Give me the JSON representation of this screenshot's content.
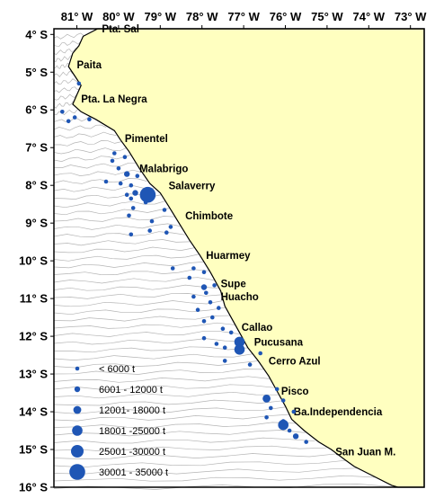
{
  "colors": {
    "land": "#FFFFC0",
    "sea": "#FFFFFF",
    "frame": "#000000",
    "dot": "#1f56b5",
    "contour": "#b4b4b4"
  },
  "axes": {
    "lon": [
      {
        "value": -81,
        "label": "81° W"
      },
      {
        "value": -80,
        "label": "80° W"
      },
      {
        "value": -79,
        "label": "79° W"
      },
      {
        "value": -78,
        "label": "78° W"
      },
      {
        "value": -77,
        "label": "77° W"
      },
      {
        "value": -76,
        "label": "76° W"
      },
      {
        "value": -75,
        "label": "75° W"
      },
      {
        "value": -74,
        "label": "74° W"
      },
      {
        "value": -73,
        "label": "73° W"
      }
    ],
    "lat": [
      {
        "value": -4,
        "label": "4° S"
      },
      {
        "value": -5,
        "label": "5° S"
      },
      {
        "value": -6,
        "label": "6° S"
      },
      {
        "value": -7,
        "label": "7° S"
      },
      {
        "value": -8,
        "label": "8° S"
      },
      {
        "value": -9,
        "label": "9° S"
      },
      {
        "value": -10,
        "label": "10° S"
      },
      {
        "value": -11,
        "label": "11° S"
      },
      {
        "value": -12,
        "label": "12° S"
      },
      {
        "value": -13,
        "label": "13° S"
      },
      {
        "value": -14,
        "label": "14° S"
      },
      {
        "value": -15,
        "label": "15° S"
      },
      {
        "value": -16,
        "label": "16° S"
      }
    ]
  },
  "places": [
    {
      "name": "Pta. Sal",
      "lon": -80.4,
      "lat": -3.95
    },
    {
      "name": "Paita",
      "lon": -81.0,
      "lat": -4.9
    },
    {
      "name": "Pta. La Negra",
      "lon": -80.9,
      "lat": -5.8
    },
    {
      "name": "Pimentel",
      "lon": -79.85,
      "lat": -6.85
    },
    {
      "name": "Malabrigo",
      "lon": -79.5,
      "lat": -7.65
    },
    {
      "name": "Salaverry",
      "lon": -78.8,
      "lat": -8.1
    },
    {
      "name": "Chimbote",
      "lon": -78.4,
      "lat": -8.9
    },
    {
      "name": "Huarmey",
      "lon": -77.9,
      "lat": -9.95
    },
    {
      "name": "Supe",
      "lon": -77.55,
      "lat": -10.7
    },
    {
      "name": "Huacho",
      "lon": -77.55,
      "lat": -11.05
    },
    {
      "name": "Callao",
      "lon": -77.05,
      "lat": -11.85
    },
    {
      "name": "Pucusana",
      "lon": -76.75,
      "lat": -12.25
    },
    {
      "name": "Cerro Azul",
      "lon": -76.4,
      "lat": -12.75
    },
    {
      "name": "Pisco",
      "lon": -76.1,
      "lat": -13.55
    },
    {
      "name": "Ba.Independencia",
      "lon": -75.8,
      "lat": -14.1
    },
    {
      "name": "San Juan M.",
      "lon": -74.8,
      "lat": -15.15
    }
  ],
  "legend": [
    {
      "label": "< 6000 t",
      "size": 1
    },
    {
      "label": "6001 - 12000 t",
      "size": 2
    },
    {
      "label": "12001- 18000 t",
      "size": 3
    },
    {
      "label": "18001 -25000 t",
      "size": 4
    },
    {
      "label": "25001 -30000 t",
      "size": 5
    },
    {
      "label": "30001 - 35000 t",
      "size": 6
    }
  ],
  "catches": [
    {
      "lon": -80.95,
      "lat": -5.3,
      "size": 1
    },
    {
      "lon": -81.35,
      "lat": -6.05,
      "size": 1
    },
    {
      "lon": -81.2,
      "lat": -6.3,
      "size": 1
    },
    {
      "lon": -81.05,
      "lat": -6.2,
      "size": 1
    },
    {
      "lon": -80.7,
      "lat": -6.25,
      "size": 1
    },
    {
      "lon": -80.1,
      "lat": -7.15,
      "size": 1
    },
    {
      "lon": -79.85,
      "lat": -7.25,
      "size": 1
    },
    {
      "lon": -80.15,
      "lat": -7.35,
      "size": 1
    },
    {
      "lon": -80.0,
      "lat": -7.55,
      "size": 1
    },
    {
      "lon": -79.8,
      "lat": -7.7,
      "size": 2
    },
    {
      "lon": -79.55,
      "lat": -7.75,
      "size": 1
    },
    {
      "lon": -80.3,
      "lat": -7.9,
      "size": 1
    },
    {
      "lon": -79.95,
      "lat": -7.95,
      "size": 1
    },
    {
      "lon": -79.7,
      "lat": -8.0,
      "size": 1
    },
    {
      "lon": -79.6,
      "lat": -8.2,
      "size": 2
    },
    {
      "lon": -79.3,
      "lat": -8.25,
      "size": 6
    },
    {
      "lon": -79.8,
      "lat": -8.25,
      "size": 1
    },
    {
      "lon": -79.7,
      "lat": -8.35,
      "size": 1
    },
    {
      "lon": -79.35,
      "lat": -8.45,
      "size": 1
    },
    {
      "lon": -79.65,
      "lat": -8.6,
      "size": 1
    },
    {
      "lon": -78.9,
      "lat": -8.65,
      "size": 1
    },
    {
      "lon": -79.75,
      "lat": -8.8,
      "size": 1
    },
    {
      "lon": -79.2,
      "lat": -8.95,
      "size": 1
    },
    {
      "lon": -78.75,
      "lat": -9.1,
      "size": 1
    },
    {
      "lon": -79.25,
      "lat": -9.2,
      "size": 1
    },
    {
      "lon": -78.85,
      "lat": -9.25,
      "size": 1
    },
    {
      "lon": -79.7,
      "lat": -9.3,
      "size": 1
    },
    {
      "lon": -78.7,
      "lat": -10.2,
      "size": 1
    },
    {
      "lon": -78.2,
      "lat": -10.2,
      "size": 1
    },
    {
      "lon": -77.95,
      "lat": -10.3,
      "size": 1
    },
    {
      "lon": -78.3,
      "lat": -10.45,
      "size": 1
    },
    {
      "lon": -77.7,
      "lat": -10.65,
      "size": 1
    },
    {
      "lon": -77.95,
      "lat": -10.7,
      "size": 2
    },
    {
      "lon": -77.9,
      "lat": -10.85,
      "size": 1
    },
    {
      "lon": -78.2,
      "lat": -10.95,
      "size": 1
    },
    {
      "lon": -77.8,
      "lat": -11.1,
      "size": 1
    },
    {
      "lon": -77.6,
      "lat": -11.25,
      "size": 1
    },
    {
      "lon": -78.1,
      "lat": -11.3,
      "size": 1
    },
    {
      "lon": -77.75,
      "lat": -11.5,
      "size": 1
    },
    {
      "lon": -77.95,
      "lat": -11.6,
      "size": 1
    },
    {
      "lon": -77.5,
      "lat": -11.8,
      "size": 1
    },
    {
      "lon": -77.3,
      "lat": -11.9,
      "size": 1
    },
    {
      "lon": -77.95,
      "lat": -12.05,
      "size": 1
    },
    {
      "lon": -77.1,
      "lat": -12.15,
      "size": 4
    },
    {
      "lon": -77.65,
      "lat": -12.2,
      "size": 1
    },
    {
      "lon": -77.45,
      "lat": -12.3,
      "size": 1
    },
    {
      "lon": -77.1,
      "lat": -12.35,
      "size": 4
    },
    {
      "lon": -76.6,
      "lat": -12.45,
      "size": 1
    },
    {
      "lon": -77.45,
      "lat": -12.65,
      "size": 1
    },
    {
      "lon": -76.85,
      "lat": -12.75,
      "size": 1
    },
    {
      "lon": -76.2,
      "lat": -13.4,
      "size": 1
    },
    {
      "lon": -76.45,
      "lat": -13.65,
      "size": 3
    },
    {
      "lon": -76.05,
      "lat": -13.7,
      "size": 1
    },
    {
      "lon": -76.35,
      "lat": -13.9,
      "size": 1
    },
    {
      "lon": -75.8,
      "lat": -14.0,
      "size": 1
    },
    {
      "lon": -76.45,
      "lat": -14.15,
      "size": 1
    },
    {
      "lon": -76.05,
      "lat": -14.25,
      "size": 1
    },
    {
      "lon": -76.05,
      "lat": -14.35,
      "size": 4
    },
    {
      "lon": -75.9,
      "lat": -14.5,
      "size": 1
    },
    {
      "lon": -75.75,
      "lat": -14.65,
      "size": 2
    },
    {
      "lon": -75.5,
      "lat": -14.8,
      "size": 1
    }
  ]
}
